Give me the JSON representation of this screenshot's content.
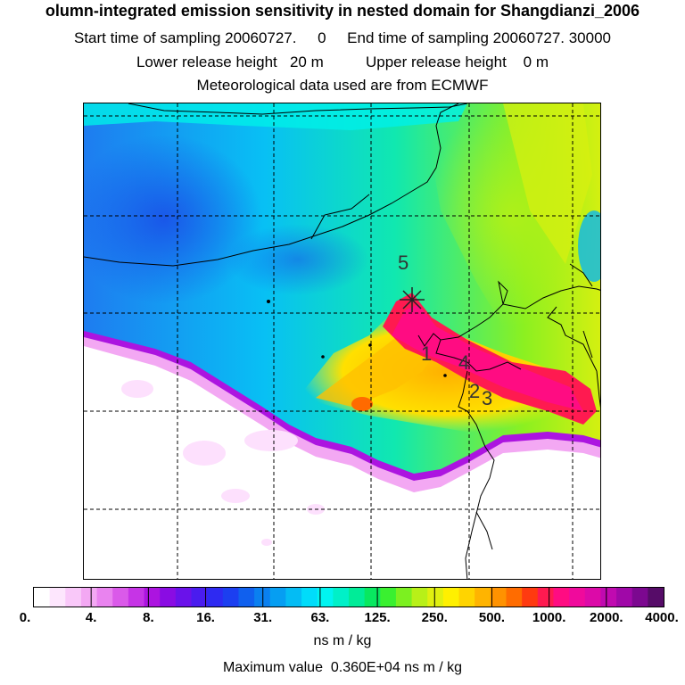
{
  "header": {
    "title": "olumn-integrated emission sensitivity in nested domain for Shangdianzi_2006",
    "sampling_line": "Start time of sampling 20060727.     0     End time of sampling 20060727. 30000",
    "release_line": "Lower release height   20 m          Upper release height    0 m",
    "met_line": "Meteorological data used are from ECMWF"
  },
  "map": {
    "site_marker_label": "5",
    "track_labels": [
      "1",
      "4",
      "2",
      "3"
    ]
  },
  "legend": {
    "tick_labels": [
      "0.",
      "4.",
      "8.",
      "16.",
      "31.",
      "63.",
      "125.",
      "250.",
      "500.",
      "1000.",
      "2000.",
      "4000."
    ],
    "colors": [
      "#ffffff",
      "#fde6fd",
      "#f9c8f9",
      "#f3a8f3",
      "#e983ef",
      "#da5ae9",
      "#c634e6",
      "#ac14e0",
      "#8a0ce3",
      "#6a12ea",
      "#4a1cef",
      "#2e2af2",
      "#1c3ff0",
      "#1060ee",
      "#0a80f0",
      "#069ef2",
      "#04bcf4",
      "#00dcfa",
      "#00f4f0",
      "#00f0c8",
      "#00ec98",
      "#08e860",
      "#3af030",
      "#7cf020",
      "#b8f018",
      "#e0f010",
      "#fff000",
      "#ffd400",
      "#ffb400",
      "#ff9200",
      "#ff6c00",
      "#ff3a10",
      "#ff1a50",
      "#ff0c82",
      "#f00a9c",
      "#dc0aa8",
      "#c00ab0",
      "#a008a8",
      "#7c0890",
      "#560c68"
    ],
    "unit": "ns m / kg",
    "max_label": "Maximum value  0.360E+04 ns m / kg"
  }
}
